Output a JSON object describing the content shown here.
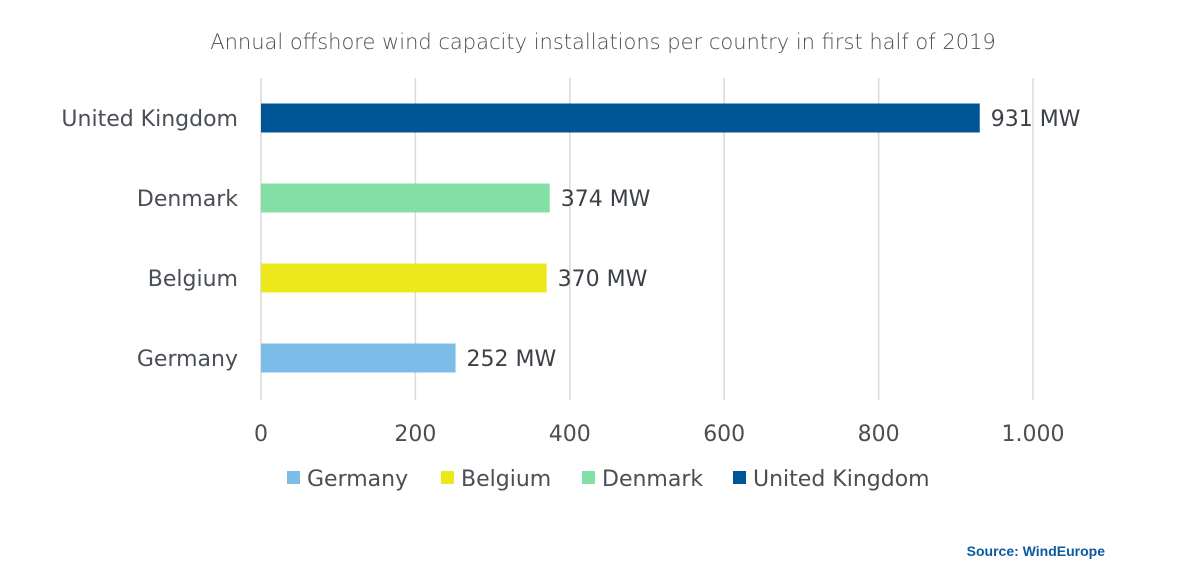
{
  "chart_data": {
    "type": "bar",
    "orientation": "horizontal",
    "title": "Annual offshore wind capacity installations per country in first half of 2019",
    "categories": [
      "United Kingdom",
      "Denmark",
      "Belgium",
      "Germany"
    ],
    "values": [
      931,
      374,
      370,
      252
    ],
    "data_labels": [
      "931 MW",
      "374 MW",
      "370 MW",
      "252 MW"
    ],
    "colors": [
      "#005596",
      "#82e0a7",
      "#ece81a",
      "#7bbde8"
    ],
    "xlim": [
      0,
      1000
    ],
    "x_ticks": [
      0,
      200,
      400,
      600,
      800,
      1000
    ],
    "x_tick_labels": [
      "0",
      "200",
      "400",
      "600",
      "800",
      "1.000"
    ],
    "grid": "vertical",
    "legend": {
      "placement": "bottom",
      "entries": [
        {
          "label": "Germany",
          "color": "#7bbde8"
        },
        {
          "label": "Belgium",
          "color": "#ece81a"
        },
        {
          "label": "Denmark",
          "color": "#82e0a7"
        },
        {
          "label": "United Kingdom",
          "color": "#005596"
        }
      ]
    }
  },
  "source": "Source: WindEurope",
  "grid_color": "#d9d9d9"
}
